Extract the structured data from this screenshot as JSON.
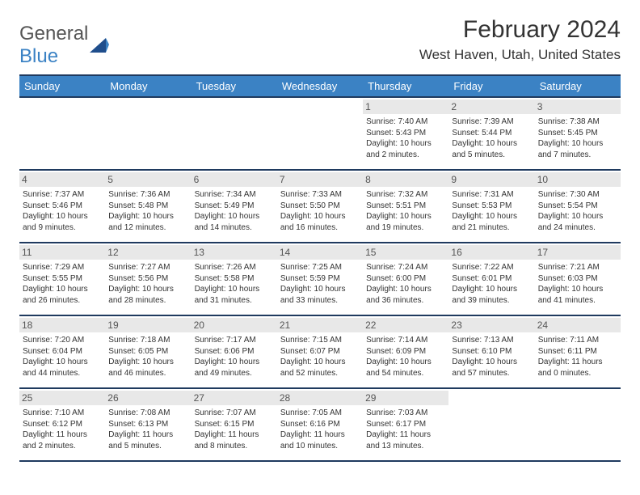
{
  "brand": {
    "text1": "General",
    "text2": "Blue"
  },
  "title": "February 2024",
  "location": "West Haven, Utah, United States",
  "header_bg": "#3b82c4",
  "border_color": "#1f3a5f",
  "daynum_bg": "#e8e8e8",
  "days_of_week": [
    "Sunday",
    "Monday",
    "Tuesday",
    "Wednesday",
    "Thursday",
    "Friday",
    "Saturday"
  ],
  "weeks": [
    [
      {
        "n": "",
        "sr": "",
        "ss": "",
        "dl": ""
      },
      {
        "n": "",
        "sr": "",
        "ss": "",
        "dl": ""
      },
      {
        "n": "",
        "sr": "",
        "ss": "",
        "dl": ""
      },
      {
        "n": "",
        "sr": "",
        "ss": "",
        "dl": ""
      },
      {
        "n": "1",
        "sr": "Sunrise: 7:40 AM",
        "ss": "Sunset: 5:43 PM",
        "dl": "Daylight: 10 hours and 2 minutes."
      },
      {
        "n": "2",
        "sr": "Sunrise: 7:39 AM",
        "ss": "Sunset: 5:44 PM",
        "dl": "Daylight: 10 hours and 5 minutes."
      },
      {
        "n": "3",
        "sr": "Sunrise: 7:38 AM",
        "ss": "Sunset: 5:45 PM",
        "dl": "Daylight: 10 hours and 7 minutes."
      }
    ],
    [
      {
        "n": "4",
        "sr": "Sunrise: 7:37 AM",
        "ss": "Sunset: 5:46 PM",
        "dl": "Daylight: 10 hours and 9 minutes."
      },
      {
        "n": "5",
        "sr": "Sunrise: 7:36 AM",
        "ss": "Sunset: 5:48 PM",
        "dl": "Daylight: 10 hours and 12 minutes."
      },
      {
        "n": "6",
        "sr": "Sunrise: 7:34 AM",
        "ss": "Sunset: 5:49 PM",
        "dl": "Daylight: 10 hours and 14 minutes."
      },
      {
        "n": "7",
        "sr": "Sunrise: 7:33 AM",
        "ss": "Sunset: 5:50 PM",
        "dl": "Daylight: 10 hours and 16 minutes."
      },
      {
        "n": "8",
        "sr": "Sunrise: 7:32 AM",
        "ss": "Sunset: 5:51 PM",
        "dl": "Daylight: 10 hours and 19 minutes."
      },
      {
        "n": "9",
        "sr": "Sunrise: 7:31 AM",
        "ss": "Sunset: 5:53 PM",
        "dl": "Daylight: 10 hours and 21 minutes."
      },
      {
        "n": "10",
        "sr": "Sunrise: 7:30 AM",
        "ss": "Sunset: 5:54 PM",
        "dl": "Daylight: 10 hours and 24 minutes."
      }
    ],
    [
      {
        "n": "11",
        "sr": "Sunrise: 7:29 AM",
        "ss": "Sunset: 5:55 PM",
        "dl": "Daylight: 10 hours and 26 minutes."
      },
      {
        "n": "12",
        "sr": "Sunrise: 7:27 AM",
        "ss": "Sunset: 5:56 PM",
        "dl": "Daylight: 10 hours and 28 minutes."
      },
      {
        "n": "13",
        "sr": "Sunrise: 7:26 AM",
        "ss": "Sunset: 5:58 PM",
        "dl": "Daylight: 10 hours and 31 minutes."
      },
      {
        "n": "14",
        "sr": "Sunrise: 7:25 AM",
        "ss": "Sunset: 5:59 PM",
        "dl": "Daylight: 10 hours and 33 minutes."
      },
      {
        "n": "15",
        "sr": "Sunrise: 7:24 AM",
        "ss": "Sunset: 6:00 PM",
        "dl": "Daylight: 10 hours and 36 minutes."
      },
      {
        "n": "16",
        "sr": "Sunrise: 7:22 AM",
        "ss": "Sunset: 6:01 PM",
        "dl": "Daylight: 10 hours and 39 minutes."
      },
      {
        "n": "17",
        "sr": "Sunrise: 7:21 AM",
        "ss": "Sunset: 6:03 PM",
        "dl": "Daylight: 10 hours and 41 minutes."
      }
    ],
    [
      {
        "n": "18",
        "sr": "Sunrise: 7:20 AM",
        "ss": "Sunset: 6:04 PM",
        "dl": "Daylight: 10 hours and 44 minutes."
      },
      {
        "n": "19",
        "sr": "Sunrise: 7:18 AM",
        "ss": "Sunset: 6:05 PM",
        "dl": "Daylight: 10 hours and 46 minutes."
      },
      {
        "n": "20",
        "sr": "Sunrise: 7:17 AM",
        "ss": "Sunset: 6:06 PM",
        "dl": "Daylight: 10 hours and 49 minutes."
      },
      {
        "n": "21",
        "sr": "Sunrise: 7:15 AM",
        "ss": "Sunset: 6:07 PM",
        "dl": "Daylight: 10 hours and 52 minutes."
      },
      {
        "n": "22",
        "sr": "Sunrise: 7:14 AM",
        "ss": "Sunset: 6:09 PM",
        "dl": "Daylight: 10 hours and 54 minutes."
      },
      {
        "n": "23",
        "sr": "Sunrise: 7:13 AM",
        "ss": "Sunset: 6:10 PM",
        "dl": "Daylight: 10 hours and 57 minutes."
      },
      {
        "n": "24",
        "sr": "Sunrise: 7:11 AM",
        "ss": "Sunset: 6:11 PM",
        "dl": "Daylight: 11 hours and 0 minutes."
      }
    ],
    [
      {
        "n": "25",
        "sr": "Sunrise: 7:10 AM",
        "ss": "Sunset: 6:12 PM",
        "dl": "Daylight: 11 hours and 2 minutes."
      },
      {
        "n": "26",
        "sr": "Sunrise: 7:08 AM",
        "ss": "Sunset: 6:13 PM",
        "dl": "Daylight: 11 hours and 5 minutes."
      },
      {
        "n": "27",
        "sr": "Sunrise: 7:07 AM",
        "ss": "Sunset: 6:15 PM",
        "dl": "Daylight: 11 hours and 8 minutes."
      },
      {
        "n": "28",
        "sr": "Sunrise: 7:05 AM",
        "ss": "Sunset: 6:16 PM",
        "dl": "Daylight: 11 hours and 10 minutes."
      },
      {
        "n": "29",
        "sr": "Sunrise: 7:03 AM",
        "ss": "Sunset: 6:17 PM",
        "dl": "Daylight: 11 hours and 13 minutes."
      },
      {
        "n": "",
        "sr": "",
        "ss": "",
        "dl": ""
      },
      {
        "n": "",
        "sr": "",
        "ss": "",
        "dl": ""
      }
    ]
  ]
}
